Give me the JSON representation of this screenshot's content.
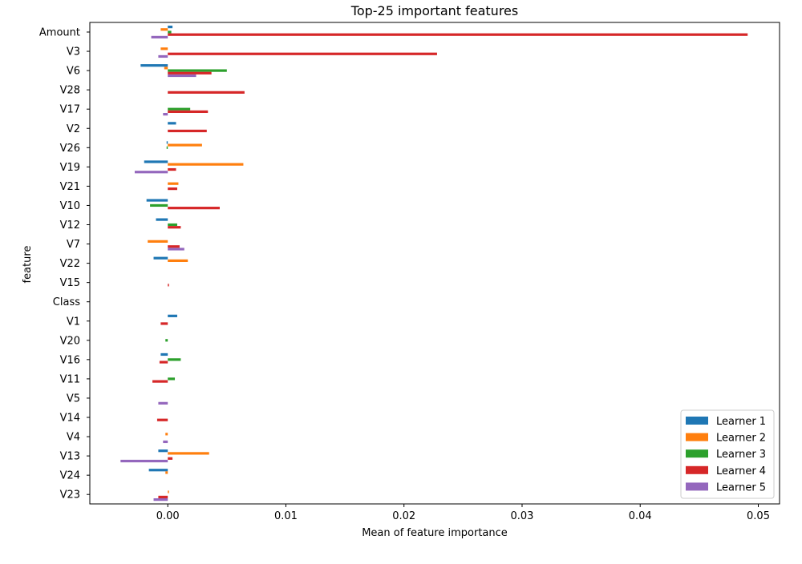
{
  "chart_data": {
    "type": "bar",
    "orientation": "horizontal",
    "title": "Top-25 important features",
    "xlabel": "Mean of feature importance",
    "ylabel": "feature",
    "xlim": [
      -0.0066,
      0.0518
    ],
    "xticks": [
      0.0,
      0.01,
      0.02,
      0.03,
      0.04,
      0.05
    ],
    "xtick_labels": [
      "0.00",
      "0.01",
      "0.02",
      "0.03",
      "0.04",
      "0.05"
    ],
    "grid": false,
    "legend_position": "bottom-right",
    "categories": [
      "Amount",
      "V3",
      "V6",
      "V28",
      "V17",
      "V2",
      "V26",
      "V19",
      "V21",
      "V10",
      "V12",
      "V7",
      "V22",
      "V15",
      "Class",
      "V1",
      "V20",
      "V16",
      "V11",
      "V5",
      "V14",
      "V4",
      "V13",
      "V24",
      "V23"
    ],
    "series": [
      {
        "name": "Learner 1",
        "color": "#1f77b4",
        "values": [
          0.0004,
          0.0,
          -0.0023,
          0.0,
          0.0,
          0.0007,
          -0.0001,
          -0.002,
          0.0,
          -0.0018,
          -0.001,
          0.0,
          -0.0012,
          0.0,
          0.0,
          0.0008,
          0.0,
          -0.0006,
          0.0,
          0.0,
          0.0,
          0.0,
          -0.0008,
          -0.0016,
          0.0
        ]
      },
      {
        "name": "Learner 2",
        "color": "#ff7f0e",
        "values": [
          -0.0006,
          -0.0006,
          -0.0003,
          0.0,
          0.0,
          0.0,
          0.0029,
          0.0064,
          0.0009,
          0.0,
          0.0,
          -0.0017,
          0.0017,
          0.0,
          0.0,
          0.0,
          0.0,
          0.0,
          0.0,
          0.0,
          0.0,
          -0.0002,
          0.0035,
          -0.0002,
          0.0001
        ]
      },
      {
        "name": "Learner 3",
        "color": "#2ca02c",
        "values": [
          0.0003,
          0.0,
          0.005,
          0.0,
          0.0019,
          0.0,
          -0.0001,
          0.0,
          0.0,
          -0.0015,
          0.0008,
          0.0,
          0.0,
          0.0,
          0.0,
          0.0,
          -0.0002,
          0.0011,
          0.0006,
          0.0,
          0.0,
          0.0,
          0.0,
          0.0,
          0.0
        ]
      },
      {
        "name": "Learner 4",
        "color": "#d62728",
        "values": [
          0.0491,
          0.0228,
          0.0037,
          0.0065,
          0.0034,
          0.0033,
          0.0,
          0.0007,
          0.0008,
          0.0044,
          0.0011,
          0.001,
          0.0,
          0.0001,
          0.0,
          -0.0006,
          0.0,
          -0.0007,
          -0.0013,
          0.0,
          -0.0009,
          0.0,
          0.0004,
          0.0,
          -0.0008
        ]
      },
      {
        "name": "Learner 5",
        "color": "#9467bd",
        "values": [
          -0.0014,
          -0.0008,
          0.0024,
          0.0,
          -0.0004,
          0.0,
          0.0,
          -0.0028,
          0.0,
          0.0,
          0.0,
          0.0014,
          0.0,
          0.0,
          0.0,
          0.0,
          0.0,
          0.0,
          0.0,
          -0.0008,
          0.0,
          -0.0004,
          -0.004,
          0.0,
          -0.0012
        ]
      }
    ]
  }
}
